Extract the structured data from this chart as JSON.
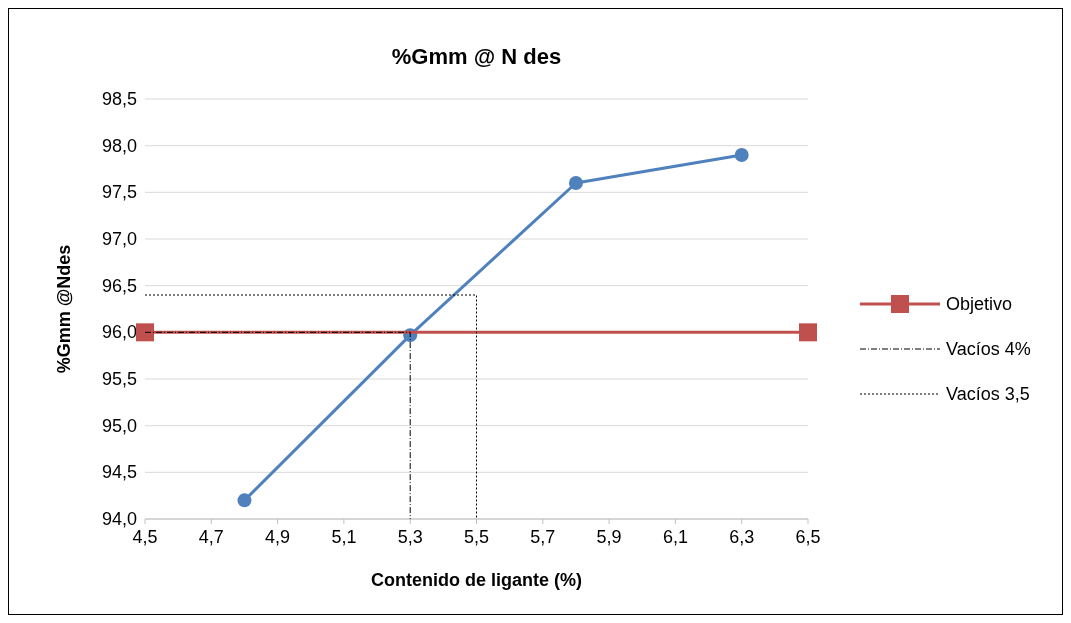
{
  "chart_data": {
    "type": "line",
    "title": "%Gmm  @ N des",
    "xlabel": "Contenido de ligante (%)",
    "ylabel": "%Gmm  @Ndes",
    "xlim": [
      4.5,
      6.5
    ],
    "ylim": [
      94,
      98.5
    ],
    "xticks": [
      {
        "value": 4.5,
        "label": "4,5"
      },
      {
        "value": 4.7,
        "label": "4,7"
      },
      {
        "value": 4.9,
        "label": "4,9"
      },
      {
        "value": 5.1,
        "label": "5,1"
      },
      {
        "value": 5.3,
        "label": "5,3"
      },
      {
        "value": 5.5,
        "label": "5,5"
      },
      {
        "value": 5.7,
        "label": "5,7"
      },
      {
        "value": 5.9,
        "label": "5,9"
      },
      {
        "value": 6.1,
        "label": "6,1"
      },
      {
        "value": 6.3,
        "label": "6,3"
      },
      {
        "value": 6.5,
        "label": "6,5"
      }
    ],
    "yticks": [
      {
        "value": 94,
        "label": "94,0"
      },
      {
        "value": 94.5,
        "label": "94,5"
      },
      {
        "value": 95,
        "label": "95,0"
      },
      {
        "value": 95.5,
        "label": "95,5"
      },
      {
        "value": 96,
        "label": "96,0"
      },
      {
        "value": 96.5,
        "label": "96,5"
      },
      {
        "value": 97,
        "label": "97,0"
      },
      {
        "value": 97.5,
        "label": "97,5"
      },
      {
        "value": 98,
        "label": "98,0"
      },
      {
        "value": 98.5,
        "label": "98,5"
      }
    ],
    "grid": "y",
    "legend": "right",
    "series": [
      {
        "color": "#4f81bd",
        "x": [
          4.8,
          5.3,
          5.8,
          6.3
        ],
        "values": [
          94.2,
          95.97,
          97.6,
          97.9
        ],
        "marker": "circle",
        "line_style": "solid"
      },
      {
        "name": "Objetivo",
        "color": "#c0504d",
        "x": [
          4.5,
          6.5
        ],
        "values": [
          96,
          96
        ],
        "marker": "square",
        "line_style": "solid"
      },
      {
        "name": "Vacíos 4%",
        "color": "#000000",
        "x": [
          4.5,
          5.3,
          5.3
        ],
        "values": [
          96,
          96,
          94
        ],
        "marker": "none",
        "line_style": "dashdot"
      },
      {
        "name": "Vacíos 3,5",
        "color": "#000000",
        "x": [
          4.5,
          5.5,
          5.5
        ],
        "values": [
          96.4,
          96.4,
          94
        ],
        "marker": "none",
        "line_style": "dotted"
      }
    ]
  }
}
